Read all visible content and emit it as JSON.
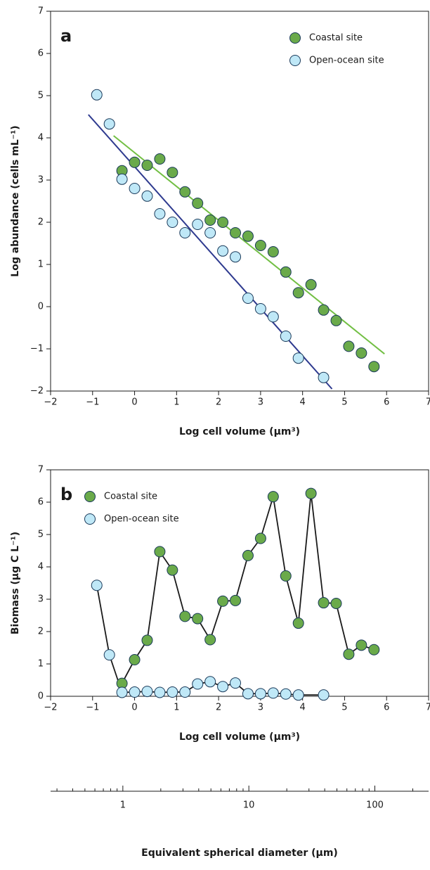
{
  "chart_data": [
    {
      "type": "scatter",
      "panel_label": "a",
      "xlabel": "Log cell volume (μm³)",
      "ylabel": "Log abundance (cells mL⁻¹)",
      "xlim": [
        -2,
        7
      ],
      "ylim": [
        -2,
        7
      ],
      "xticks": [
        {
          "value": -2,
          "label": "−2"
        },
        {
          "value": -1,
          "label": "−1"
        },
        0,
        1,
        2,
        3,
        4,
        5,
        6,
        7
      ],
      "yticks": [
        {
          "value": -2,
          "label": "−2"
        },
        {
          "value": -1,
          "label": "−1"
        },
        0,
        1,
        2,
        3,
        4,
        5,
        6,
        7
      ],
      "legend": "upper right",
      "series": [
        {
          "name": "Coastal site",
          "color": "#6aaa4a",
          "line_color": "#72bf44",
          "x": [
            -0.3,
            0,
            0.3,
            0.6,
            0.9,
            1.2,
            1.5,
            1.8,
            2.1,
            2.4,
            2.7,
            3.0,
            3.3,
            3.6,
            3.9,
            4.2,
            4.5,
            4.8,
            5.1,
            5.4,
            5.7
          ],
          "values": [
            3.22,
            3.42,
            3.35,
            3.5,
            3.18,
            2.72,
            2.45,
            2.05,
            2.0,
            1.75,
            1.67,
            1.45,
            1.3,
            0.82,
            0.33,
            0.52,
            -0.08,
            -0.33,
            -0.94,
            -1.1,
            -1.42
          ],
          "fit": {
            "x": [
              -0.5,
              5.95
            ],
            "values": [
              4.05,
              -1.12
            ]
          }
        },
        {
          "name": "Open-ocean site",
          "color": "#bfe8f7",
          "line_color": "#2e3a8f",
          "x": [
            -0.9,
            -0.6,
            -0.3,
            0,
            0.3,
            0.6,
            0.9,
            1.2,
            1.5,
            1.8,
            2.1,
            2.4,
            2.7,
            3.0,
            3.3,
            3.6,
            3.9,
            4.5
          ],
          "values": [
            5.02,
            4.33,
            3.02,
            2.8,
            2.62,
            2.2,
            2.0,
            1.75,
            1.95,
            1.75,
            1.32,
            1.18,
            0.2,
            -0.05,
            -0.24,
            -0.7,
            -1.22,
            -1.68
          ],
          "fit": {
            "x": [
              -1.1,
              4.7
            ],
            "values": [
              4.55,
              -1.95
            ]
          }
        }
      ]
    },
    {
      "type": "line",
      "panel_label": "b",
      "xlabel": "Log cell volume (μm³)",
      "ylabel": "Biomass (μg C L⁻¹)",
      "xlim": [
        -2,
        7
      ],
      "ylim": [
        0,
        7
      ],
      "xticks": [
        {
          "value": -2,
          "label": "−2"
        },
        {
          "value": -1,
          "label": "−1"
        },
        0,
        1,
        2,
        3,
        4,
        5,
        6,
        7
      ],
      "yticks": [
        0,
        1,
        2,
        3,
        4,
        5,
        6,
        7
      ],
      "legend": "upper left",
      "series": [
        {
          "name": "Coastal site",
          "color": "#6aaa4a",
          "line_color": "#1a1a1a",
          "x": [
            -0.3,
            0,
            0.3,
            0.6,
            0.9,
            1.2,
            1.5,
            1.8,
            2.1,
            2.4,
            2.7,
            3.0,
            3.3,
            3.6,
            3.9,
            4.2,
            4.5,
            4.8,
            5.1,
            5.4,
            5.7
          ],
          "values": [
            0.4,
            1.13,
            1.73,
            4.47,
            3.9,
            2.47,
            2.4,
            1.75,
            2.94,
            2.96,
            4.35,
            4.88,
            6.17,
            3.72,
            2.26,
            6.27,
            2.89,
            2.87,
            1.3,
            1.58,
            1.44
          ]
        },
        {
          "name": "Open-ocean site",
          "color": "#bfe8f7",
          "line_color": "#1a1a1a",
          "x": [
            -0.9,
            -0.6,
            -0.3,
            0,
            0.3,
            0.6,
            0.9,
            1.2,
            1.5,
            1.8,
            2.1,
            2.4,
            2.7,
            3.0,
            3.3,
            3.6,
            3.9,
            4.5
          ],
          "values": [
            3.43,
            1.28,
            0.12,
            0.13,
            0.15,
            0.12,
            0.13,
            0.13,
            0.38,
            0.45,
            0.3,
            0.41,
            0.08,
            0.08,
            0.1,
            0.07,
            0.04,
            0.04
          ]
        }
      ]
    },
    {
      "type": "axis",
      "log_scale": true,
      "xlabel": "Equivalent spherical diameter (μm)",
      "xlim": [
        0.267,
        267
      ],
      "xticks": [
        1,
        10,
        100
      ],
      "minor_ticks": [
        0.3,
        0.4,
        0.5,
        0.6,
        0.7,
        0.8,
        0.9,
        2,
        3,
        4,
        5,
        6,
        7,
        8,
        9,
        20,
        30,
        40,
        50,
        60,
        70,
        80,
        90,
        200
      ]
    }
  ]
}
